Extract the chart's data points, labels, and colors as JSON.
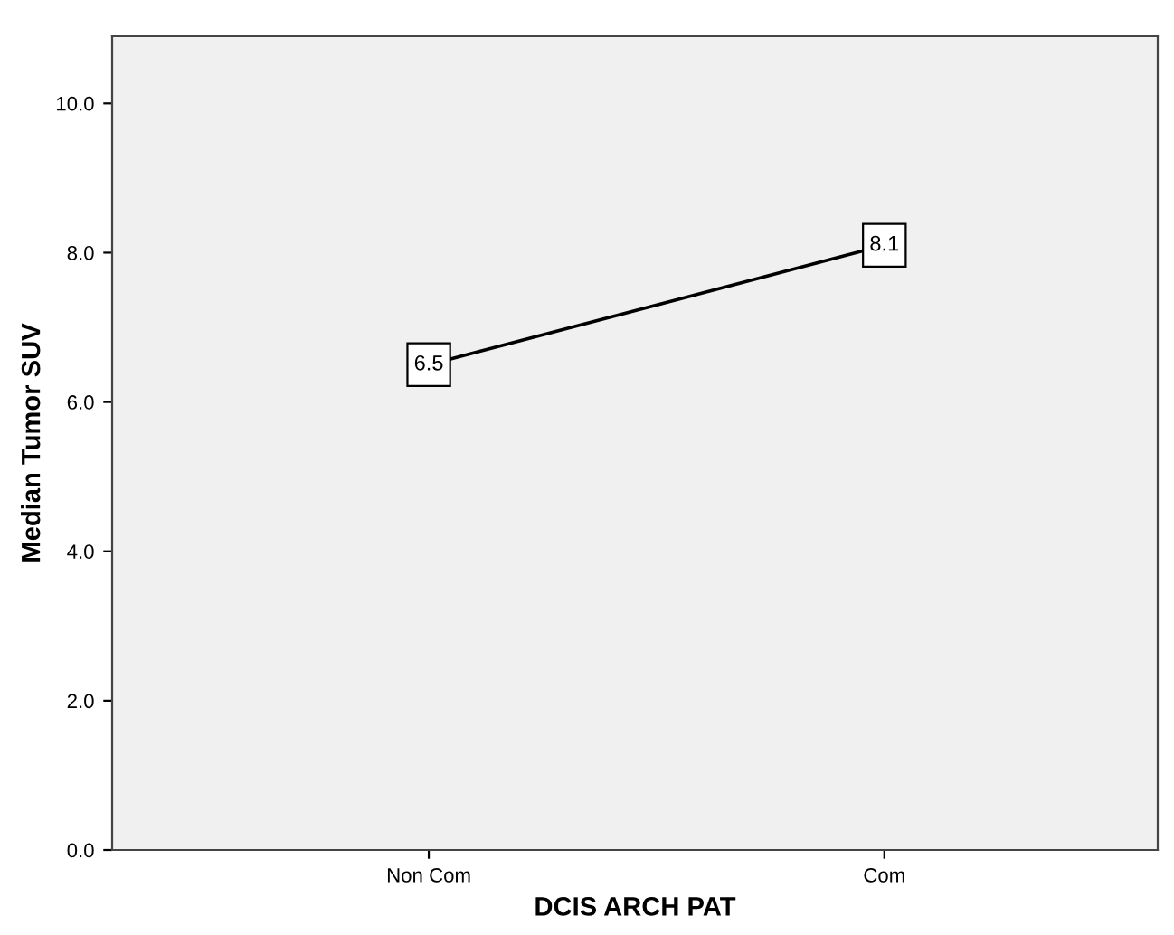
{
  "chart_data": {
    "type": "line",
    "xlabel": "DCIS ARCH PAT",
    "ylabel": "Median Tumor SUV",
    "categories": [
      "Non Com",
      "Com"
    ],
    "series": [
      {
        "color": "#000000",
        "values": [
          6.5,
          8.1
        ]
      }
    ],
    "ylim": [
      0,
      10.9
    ],
    "yticks": [
      {
        "value": 0,
        "label": "0.0"
      },
      {
        "value": 2,
        "label": "2.0"
      },
      {
        "value": 4,
        "label": "4.0"
      },
      {
        "value": 6,
        "label": "6.0"
      },
      {
        "value": 8,
        "label": "8.0"
      },
      {
        "value": 10,
        "label": "10.0"
      }
    ],
    "data_labels": true,
    "grid": false,
    "legend": false,
    "marker": "square",
    "line_style": "solid"
  }
}
